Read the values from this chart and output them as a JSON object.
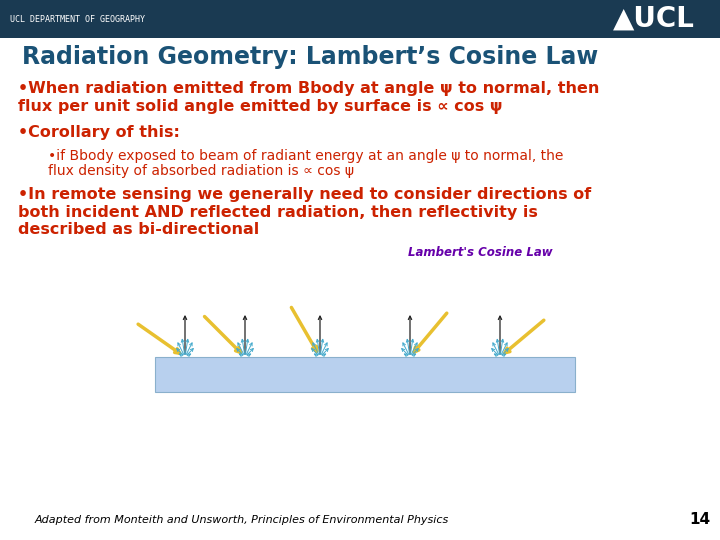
{
  "header_bg": "#1a3a52",
  "header_text": "UCL DEPARTMENT OF GEOGRAPHY",
  "header_text_color": "#ffffff",
  "ucl_logo_text": "▲UCL",
  "ucl_logo_color": "#ffffff",
  "slide_bg": "#ffffff",
  "title": "Radiation Geometry: Lambert’s Cosine Law",
  "title_color": "#1a5276",
  "title_fontsize": 17,
  "bullet1_line1": "•When radiation emitted from Bbody at angle ψ to normal, then",
  "bullet1_line2": "flux per unit solid angle emitted by surface is ∝ cos ψ",
  "bullet2": "•Corollary of this:",
  "subbullet_line1": "•if Bbody exposed to beam of radiant energy at an angle ψ to normal, the",
  "subbullet_line2": "flux density of absorbed radiation is ∝ cos ψ",
  "bullet3_line1": "•In remote sensing we generally need to consider directions of",
  "bullet3_line2": "both incident AND reflected radiation, then reflectivity is",
  "bullet3_line3": "described as bi-directional",
  "body_text_color": "#cc2200",
  "body_fontsize": 11.5,
  "subbullet_fontsize": 10,
  "footer_text": "Adapted from Monteith and Unsworth, Principles of Environmental Physics",
  "footer_color": "#000000",
  "footer_fontsize": 8,
  "page_number": "14",
  "page_number_color": "#000000",
  "diagram_label": "Lambert's Cosine Law",
  "diagram_label_color": "#6600aa",
  "ground_color": "#b8d0ee",
  "ground_edge_color": "#8ab0cc",
  "arrow_normal_color": "#222222",
  "arrow_beam_color": "#e8c030",
  "arrow_scatter_color": "#44aacc"
}
